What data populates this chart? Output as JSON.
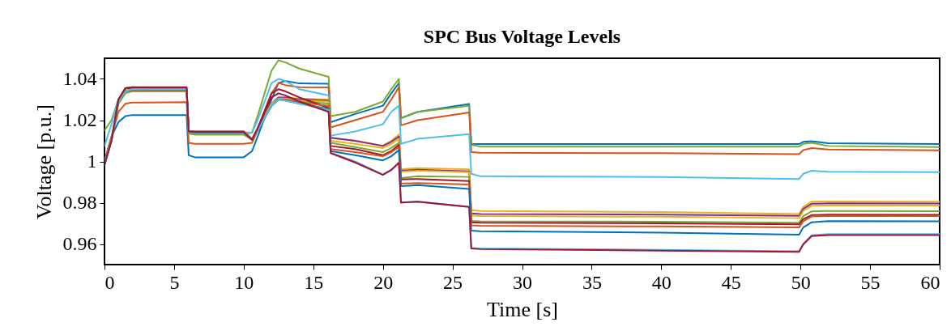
{
  "chart_data": {
    "type": "line",
    "title": "SPC Bus Voltage Levels",
    "xlabel": "Time [s]",
    "ylabel": "Voltage [p.u.]",
    "x": [
      0,
      0.5,
      1,
      1.5,
      2,
      3,
      5.9,
      6.05,
      6.5,
      8,
      10,
      10.6,
      11,
      12,
      12.5,
      13,
      14,
      16.1,
      16.25,
      18,
      20,
      20.6,
      21.15,
      21.3,
      22.5,
      26.2,
      26.35,
      27,
      40,
      49.9,
      50.2,
      50.8,
      52,
      60
    ],
    "xlim": [
      0,
      60
    ],
    "xticks": [
      0,
      5,
      10,
      15,
      20,
      25,
      30,
      35,
      40,
      45,
      50,
      55,
      60
    ],
    "ylim": [
      0.95,
      1.05
    ],
    "yticks": [
      0.96,
      0.98,
      1,
      1.02,
      1.04
    ],
    "series": [
      {
        "color": "#0072bd",
        "values": [
          1.0,
          1.012,
          1.019,
          1.022,
          1.0225,
          1.0225,
          1.0225,
          1.003,
          1.002,
          1.002,
          1.002,
          1.005,
          1.012,
          1.03,
          1.038,
          1.039,
          1.0378,
          1.0376,
          1.019,
          1.023,
          1.027,
          1.033,
          1.038,
          1.021,
          1.024,
          1.0278,
          1.0085,
          1.0084,
          1.0084,
          1.0084,
          1.0095,
          1.0098,
          1.0088,
          1.0084
        ]
      },
      {
        "color": "#77ac30",
        "values": [
          1.015,
          1.02,
          1.03,
          1.034,
          1.034,
          1.034,
          1.034,
          1.0135,
          1.013,
          1.013,
          1.013,
          1.014,
          1.022,
          1.044,
          1.049,
          1.048,
          1.045,
          1.041,
          1.022,
          1.024,
          1.029,
          1.035,
          1.04,
          1.021,
          1.024,
          1.027,
          1.008,
          1.0072,
          1.0072,
          1.0072,
          1.0085,
          1.009,
          1.0075,
          1.007
        ]
      },
      {
        "color": "#d95319",
        "values": [
          1.0,
          1.012,
          1.024,
          1.028,
          1.0285,
          1.0285,
          1.0287,
          1.009,
          1.0085,
          1.0085,
          1.0085,
          1.009,
          1.015,
          1.033,
          1.038,
          1.037,
          1.036,
          1.0359,
          1.0165,
          1.02,
          1.024,
          1.03,
          1.036,
          1.0175,
          1.02,
          1.0237,
          1.0045,
          1.0042,
          1.004,
          1.0035,
          1.0055,
          1.0065,
          1.0058,
          1.0054
        ]
      },
      {
        "color": "#4dbeee",
        "values": [
          1.0075,
          1.018,
          1.03,
          1.034,
          1.0345,
          1.0345,
          1.0345,
          1.0145,
          1.014,
          1.014,
          1.014,
          1.014,
          1.02,
          1.038,
          1.04,
          1.039,
          1.035,
          1.032,
          1.0125,
          1.0145,
          1.018,
          1.024,
          1.027,
          1.0085,
          1.011,
          1.0132,
          0.994,
          0.9928,
          0.9925,
          0.9915,
          0.994,
          0.9955,
          0.995,
          0.9948
        ]
      },
      {
        "color": "#edb120",
        "values": [
          null,
          null,
          1.029,
          1.0345,
          1.035,
          1.035,
          1.035,
          1.0148,
          1.0145,
          1.0145,
          1.0145,
          1.011,
          1.016,
          1.028,
          1.031,
          1.031,
          1.0305,
          1.03,
          1.0115,
          1.01,
          1.0077,
          1.01,
          1.013,
          0.9962,
          0.9968,
          0.9962,
          0.9765,
          0.976,
          0.9755,
          0.9745,
          0.978,
          0.9805,
          0.9806,
          0.9805
        ]
      },
      {
        "color": "#7e2f8e",
        "values": [
          0.998,
          1.01,
          1.029,
          1.0355,
          1.0355,
          1.035,
          1.035,
          1.0148,
          1.0145,
          1.0145,
          1.0145,
          1.0105,
          1.015,
          1.028,
          1.031,
          1.031,
          1.03,
          1.0295,
          1.0115,
          1.01,
          1.0075,
          1.0095,
          1.012,
          0.9955,
          0.996,
          0.9952,
          0.9748,
          0.9745,
          0.9742,
          0.9736,
          0.977,
          0.9795,
          0.9797,
          0.9796
        ]
      },
      {
        "color": "#edb120",
        "values": [
          null,
          null,
          1.029,
          1.034,
          1.035,
          1.035,
          1.035,
          1.0147,
          1.0144,
          1.0144,
          1.0144,
          1.0105,
          1.015,
          1.028,
          1.0305,
          1.0305,
          1.0295,
          1.029,
          1.01,
          1.0085,
          1.0065,
          1.0085,
          1.011,
          0.995,
          0.9955,
          0.9948,
          0.9738,
          0.9735,
          0.9732,
          0.9725,
          0.976,
          0.9785,
          0.9787,
          0.9786
        ]
      },
      {
        "color": "#77ac30",
        "values": [
          1.0,
          1.011,
          1.028,
          1.033,
          1.034,
          1.034,
          1.034,
          1.0135,
          1.013,
          1.013,
          1.013,
          1.0105,
          1.015,
          1.027,
          1.03,
          1.03,
          1.029,
          1.028,
          1.009,
          1.007,
          1.0045,
          1.0065,
          1.009,
          0.992,
          0.9928,
          0.9925,
          0.9712,
          0.971,
          0.9708,
          0.9703,
          0.9735,
          0.9758,
          0.976,
          0.9759
        ]
      },
      {
        "color": "#a2142f",
        "values": [
          0.999,
          1.01,
          1.03,
          1.0355,
          1.036,
          1.0355,
          1.0355,
          1.0146,
          1.0144,
          1.0144,
          1.0144,
          1.0105,
          1.016,
          1.033,
          1.035,
          1.034,
          1.031,
          1.026,
          1.0075,
          1.006,
          1.003,
          1.005,
          1.008,
          0.9913,
          0.9915,
          0.9905,
          0.9705,
          0.9703,
          0.97,
          0.9695,
          0.972,
          0.974,
          0.9742,
          0.9741
        ]
      },
      {
        "color": "#d95319",
        "values": [
          0.999,
          1.01,
          1.029,
          1.034,
          1.0345,
          1.0345,
          1.0345,
          1.0142,
          1.014,
          1.014,
          1.014,
          1.0105,
          1.015,
          1.027,
          1.03,
          1.03,
          1.0285,
          1.027,
          1.006,
          1.0045,
          1.0025,
          1.0045,
          1.007,
          0.9893,
          0.9895,
          0.9888,
          0.969,
          0.9688,
          0.9685,
          0.968,
          0.971,
          0.9733,
          0.9736,
          0.9735
        ]
      },
      {
        "color": "#0072bd",
        "values": [
          0.9985,
          1.01,
          1.029,
          1.034,
          1.035,
          1.035,
          1.035,
          1.0143,
          1.014,
          1.014,
          1.014,
          1.0105,
          1.015,
          1.027,
          1.03,
          1.0295,
          1.028,
          1.0255,
          1.005,
          1.003,
          1.0005,
          1.0025,
          1.0055,
          0.988,
          0.9885,
          0.9867,
          0.9665,
          0.9662,
          0.9655,
          0.9645,
          0.968,
          0.9705,
          0.9711,
          0.971
        ]
      },
      {
        "color": "#4dbeee",
        "values": [
          0.999,
          1.01,
          1.029,
          1.034,
          1.035,
          1.035,
          1.035,
          1.0143,
          1.014,
          1.014,
          1.014,
          1.0105,
          1.015,
          1.027,
          1.03,
          1.0295,
          1.028,
          1.025,
          1.0042,
          1.0,
          0.9937,
          0.996,
          0.9995,
          0.98,
          0.9805,
          0.978,
          0.958,
          0.9578,
          0.9572,
          0.9565,
          0.96,
          0.9642,
          0.9648,
          0.9648
        ]
      },
      {
        "color": "#a2142f",
        "values": [
          0.9985,
          1.01,
          1.03,
          1.0355,
          1.036,
          1.036,
          1.036,
          1.0145,
          1.0142,
          1.0142,
          1.0142,
          1.0105,
          1.016,
          1.031,
          1.033,
          1.032,
          1.029,
          1.024,
          1.004,
          0.9995,
          0.9935,
          0.9958,
          0.9993,
          0.9801,
          0.9805,
          0.9779,
          0.9578,
          0.9575,
          0.9568,
          0.9562,
          0.9598,
          0.9638,
          0.9643,
          0.9643
        ]
      }
    ]
  }
}
